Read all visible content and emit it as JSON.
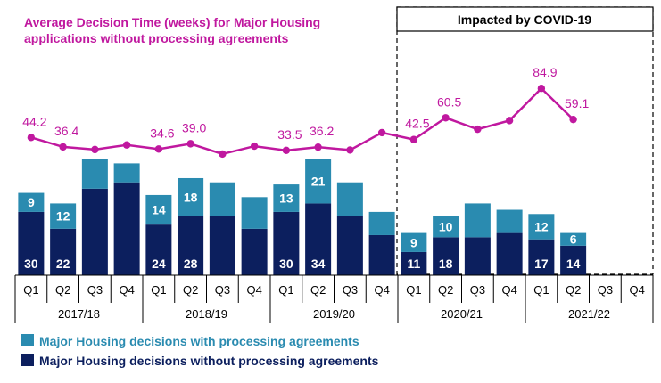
{
  "chart_data": {
    "type": "bar",
    "title_lines": [
      "Average Decision Time (weeks) for Major Housing",
      "applications without processing agreements"
    ],
    "quarters": [
      "Q1",
      "Q2",
      "Q3",
      "Q4",
      "Q1",
      "Q2",
      "Q3",
      "Q4",
      "Q1",
      "Q2",
      "Q3",
      "Q4",
      "Q1",
      "Q2",
      "Q3",
      "Q4",
      "Q1",
      "Q2",
      "Q3",
      "Q4"
    ],
    "years": [
      "2017/18",
      "2018/19",
      "2019/20",
      "2020/21",
      "2021/22"
    ],
    "series": [
      {
        "name": "Major Housing decisions without processing agreements",
        "color": "#0c1f5e",
        "values": [
          30,
          22,
          41,
          44,
          24,
          28,
          28,
          22,
          30,
          34,
          28,
          19,
          11,
          18,
          18,
          20,
          17,
          14,
          null,
          null
        ],
        "labels": [
          "30",
          "22",
          "",
          "",
          "24",
          "28",
          "",
          "",
          "30",
          "34",
          "",
          "",
          "11",
          "18",
          "",
          "",
          "17",
          "14",
          "",
          ""
        ]
      },
      {
        "name": "Major Housing decisions with processing agreements",
        "color": "#2a8bb0",
        "values": [
          9,
          12,
          14,
          9,
          14,
          18,
          16,
          15,
          13,
          21,
          16,
          11,
          9,
          10,
          16,
          11,
          12,
          6,
          null,
          null
        ],
        "labels": [
          "9",
          "12",
          "",
          "",
          "14",
          "18",
          "",
          "",
          "13",
          "21",
          "",
          "",
          "9",
          "10",
          "",
          "",
          "12",
          "6",
          "",
          ""
        ]
      }
    ],
    "line": {
      "name": "Average Decision Time (weeks)",
      "color": "#c0189f",
      "values": [
        44.2,
        36.4,
        34.2,
        38.0,
        34.6,
        39.0,
        30.5,
        37.0,
        33.5,
        36.2,
        33.8,
        48.2,
        42.5,
        60.5,
        51.0,
        58.2,
        84.9,
        59.1,
        null,
        null
      ],
      "labels": [
        "44.2",
        "36.4",
        "",
        "",
        "34.6",
        "39.0",
        "",
        "",
        "33.5",
        "36.2",
        "",
        "",
        "42.5",
        "60.5",
        "",
        "",
        "84.9",
        "59.1",
        "",
        ""
      ]
    },
    "covid_annotation": "Impacted by COVID-19",
    "bar_ylim": [
      0,
      100
    ],
    "line_ylim": [
      -70,
      105
    ]
  }
}
